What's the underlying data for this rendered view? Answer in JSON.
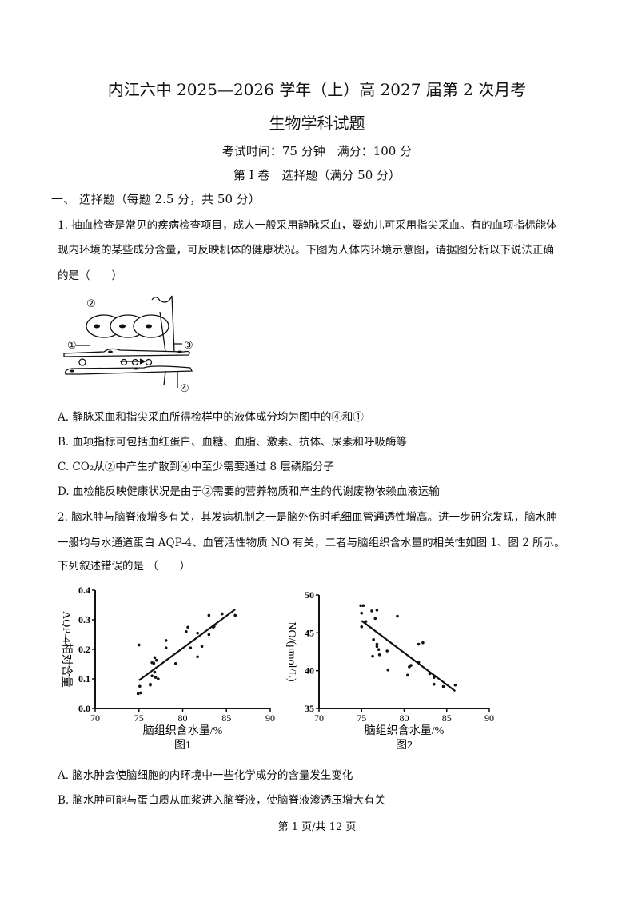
{
  "header": {
    "title": "内江六中 2025—2026 学年（上）高 2027 届第 2 次月考",
    "subtitle": "生物学科试题",
    "exam_info": "考试时间：75 分钟　满分：100 分",
    "section": "第 I 卷　选择题（满分 50 分）",
    "part": "一、 选择题（每题 2.5 分，共 50 分）"
  },
  "q1": {
    "lines": [
      "1. 抽血检查是常见的疾病检查项目，成人一般采用静脉采血，婴幼儿可采用指尖采血。有的血项指标能体",
      "现内环境的某些成分含量，可反映机体的健康状况。下图为人体内环境示意图，请据图分析以下说法正确",
      "的是（　　）"
    ],
    "diagram_labels": [
      "②",
      "①",
      "③",
      "④"
    ],
    "options": [
      "A. 静脉采血和指尖采血所得检样中的液体成分均为图中的④和①",
      "B. 血项指标可包括血红蛋白、血糖、血脂、激素、抗体、尿素和呼吸酶等",
      "C. CO₂从②中产生扩散到④中至少需要通过 8 层磷脂分子",
      "D. 血检能反映健康状况是由于②需要的营养物质和产生的代谢废物依赖血液运输"
    ]
  },
  "q2": {
    "lines": [
      "2. 脑水肿与脑脊液增多有关，其发病机制之一是脑外伤时毛细血管通透性增高。进一步研究发现，脑水肿",
      "一般均与水通道蛋白 AQP-4、血管活性物质 NO 有关，二者与脑组织含水量的相关性如图 1、图 2 所示。",
      "下列叙述错误的是 （　　）"
    ],
    "options": [
      "A. 脑水肿会使脑细胞的内环境中一些化学成分的含量发生变化",
      "B. 脑水肿可能与蛋白质从血浆进入脑脊液，使脑脊液渗透压增大有关"
    ]
  },
  "chart_data": [
    {
      "type": "scatter",
      "title": "图1",
      "xlabel": "脑组织含水量/%",
      "ylabel": "AQP-4相对含量",
      "xlim": [
        70,
        90
      ],
      "ylim": [
        0,
        0.4
      ],
      "xticks": [
        "70",
        "75",
        "80",
        "85",
        "90"
      ],
      "yticks": [
        "0.0",
        "0.1",
        "0.2",
        "0.3",
        "0.4"
      ],
      "points": [
        [
          75,
          0.215
        ],
        [
          75.1,
          0.075
        ],
        [
          74.9,
          0.05
        ],
        [
          75.2,
          0.053
        ],
        [
          76.3,
          0.082
        ],
        [
          76.3,
          0.079
        ],
        [
          76.5,
          0.11
        ],
        [
          76.5,
          0.155
        ],
        [
          76.7,
          0.153
        ],
        [
          76.8,
          0.172
        ],
        [
          77,
          0.163
        ],
        [
          76.8,
          0.123
        ],
        [
          76.9,
          0.105
        ],
        [
          77.2,
          0.1
        ],
        [
          78.1,
          0.23
        ],
        [
          78.1,
          0.205
        ],
        [
          79.2,
          0.152
        ],
        [
          80.4,
          0.26
        ],
        [
          80.6,
          0.275
        ],
        [
          80.9,
          0.205
        ],
        [
          81.7,
          0.255
        ],
        [
          81.7,
          0.175
        ],
        [
          82.2,
          0.21
        ],
        [
          83,
          0.315
        ],
        [
          83,
          0.25
        ],
        [
          83.5,
          0.275
        ],
        [
          83.6,
          0.278
        ],
        [
          84.5,
          0.32
        ],
        [
          86,
          0.315
        ]
      ],
      "trendline": [
        [
          75,
          0.095
        ],
        [
          86,
          0.335
        ]
      ]
    },
    {
      "type": "scatter",
      "title": "图2",
      "xlabel": "脑组织含水量/%",
      "ylabel": "NO/(μmol/L)",
      "xlim": [
        70,
        90
      ],
      "ylim": [
        35,
        50
      ],
      "xticks": [
        "70",
        "75",
        "80",
        "85",
        "90"
      ],
      "yticks": [
        "35",
        "40",
        "45",
        "50"
      ],
      "points": [
        [
          74.9,
          48.6
        ],
        [
          75.2,
          48.6
        ],
        [
          75,
          47.6
        ],
        [
          75,
          45.8
        ],
        [
          75.5,
          46.5
        ],
        [
          76.2,
          47.9
        ],
        [
          76.8,
          48
        ],
        [
          76.6,
          46.9
        ],
        [
          76.4,
          44.1
        ],
        [
          76.8,
          43.5
        ],
        [
          76.8,
          43.2
        ],
        [
          77,
          42.8
        ],
        [
          77.1,
          42.1
        ],
        [
          76.3,
          41.9
        ],
        [
          78,
          42.6
        ],
        [
          78.1,
          40.1
        ],
        [
          79.2,
          47.2
        ],
        [
          80.4,
          39.4
        ],
        [
          80.6,
          40.5
        ],
        [
          80.8,
          40.7
        ],
        [
          81.7,
          41.1
        ],
        [
          81.7,
          43.5
        ],
        [
          82.2,
          43.7
        ],
        [
          83,
          39.6
        ],
        [
          83.5,
          39.1
        ],
        [
          83.5,
          38.2
        ],
        [
          84.6,
          37.9
        ],
        [
          86,
          38.1
        ]
      ],
      "trendline": [
        [
          75,
          46.6
        ],
        [
          86,
          37.3
        ]
      ]
    }
  ],
  "footer": "第 1 页/共 12 页"
}
